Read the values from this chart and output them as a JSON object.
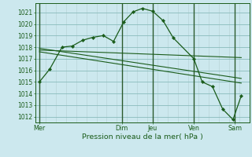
{
  "background_color": "#cce8ee",
  "grid_minor_color": "#b8d4d8",
  "grid_major_color": "#88bbbb",
  "line_color": "#1a5c1a",
  "vline_color": "#2d5a2d",
  "ylim": [
    1011.5,
    1021.8
  ],
  "yticks": [
    1012,
    1013,
    1014,
    1015,
    1016,
    1017,
    1018,
    1019,
    1020,
    1021
  ],
  "xlabel": "Pression niveau de la mer( hPa )",
  "xtick_labels": [
    "Mer",
    "Dim",
    "Jeu",
    "Ven",
    "Sam"
  ],
  "xtick_positions": [
    0,
    4.0,
    5.5,
    7.5,
    9.5
  ],
  "xlim": [
    -0.2,
    10.2
  ],
  "num_minor_vlines": 22,
  "vlines_x": [
    0,
    4.0,
    5.5,
    7.5,
    9.5
  ],
  "series_main": {
    "x": [
      0.0,
      0.5,
      1.1,
      1.6,
      2.1,
      2.6,
      3.1,
      3.6,
      4.1,
      4.55,
      5.0,
      5.5,
      6.0,
      6.5,
      7.5,
      7.9,
      8.4,
      8.9,
      9.4,
      9.8
    ],
    "y": [
      1015.0,
      1016.1,
      1018.0,
      1018.1,
      1018.6,
      1018.85,
      1019.0,
      1018.5,
      1020.2,
      1021.05,
      1021.35,
      1021.1,
      1020.3,
      1018.8,
      1017.0,
      1015.0,
      1014.6,
      1012.65,
      1011.75,
      1013.8
    ]
  },
  "series_flat": {
    "x": [
      0.0,
      9.8
    ],
    "y": [
      1017.75,
      1017.1
    ]
  },
  "series_diag1": {
    "x": [
      0.0,
      9.8
    ],
    "y": [
      1017.9,
      1015.3
    ]
  },
  "series_diag2": {
    "x": [
      0.0,
      9.8
    ],
    "y": [
      1017.6,
      1014.9
    ]
  }
}
